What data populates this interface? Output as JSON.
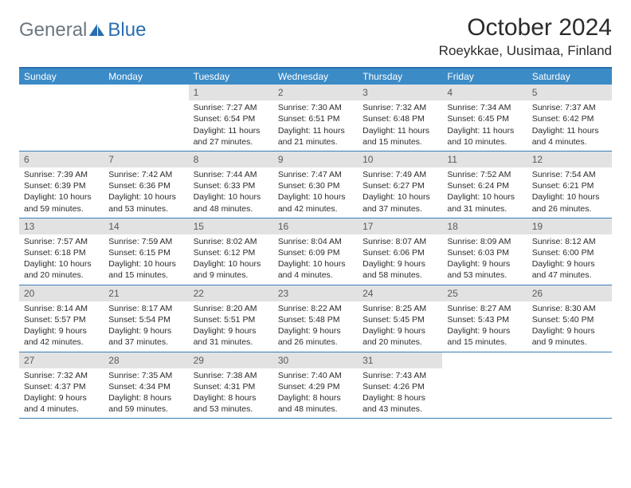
{
  "logo": {
    "general": "General",
    "blue": "Blue"
  },
  "header": {
    "title": "October 2024",
    "location": "Roeykkae, Uusimaa, Finland"
  },
  "colors": {
    "header_bg": "#3b8bc7",
    "border": "#2a6db0",
    "daynum_bg": "#e2e2e2",
    "text": "#2b2b2b",
    "logo_gray": "#6c7680",
    "logo_blue": "#2a6db0"
  },
  "dayNames": [
    "Sunday",
    "Monday",
    "Tuesday",
    "Wednesday",
    "Thursday",
    "Friday",
    "Saturday"
  ],
  "weeks": [
    [
      {
        "n": "",
        "lines": []
      },
      {
        "n": "",
        "lines": []
      },
      {
        "n": "1",
        "lines": [
          "Sunrise: 7:27 AM",
          "Sunset: 6:54 PM",
          "Daylight: 11 hours",
          "and 27 minutes."
        ]
      },
      {
        "n": "2",
        "lines": [
          "Sunrise: 7:30 AM",
          "Sunset: 6:51 PM",
          "Daylight: 11 hours",
          "and 21 minutes."
        ]
      },
      {
        "n": "3",
        "lines": [
          "Sunrise: 7:32 AM",
          "Sunset: 6:48 PM",
          "Daylight: 11 hours",
          "and 15 minutes."
        ]
      },
      {
        "n": "4",
        "lines": [
          "Sunrise: 7:34 AM",
          "Sunset: 6:45 PM",
          "Daylight: 11 hours",
          "and 10 minutes."
        ]
      },
      {
        "n": "5",
        "lines": [
          "Sunrise: 7:37 AM",
          "Sunset: 6:42 PM",
          "Daylight: 11 hours",
          "and 4 minutes."
        ]
      }
    ],
    [
      {
        "n": "6",
        "lines": [
          "Sunrise: 7:39 AM",
          "Sunset: 6:39 PM",
          "Daylight: 10 hours",
          "and 59 minutes."
        ]
      },
      {
        "n": "7",
        "lines": [
          "Sunrise: 7:42 AM",
          "Sunset: 6:36 PM",
          "Daylight: 10 hours",
          "and 53 minutes."
        ]
      },
      {
        "n": "8",
        "lines": [
          "Sunrise: 7:44 AM",
          "Sunset: 6:33 PM",
          "Daylight: 10 hours",
          "and 48 minutes."
        ]
      },
      {
        "n": "9",
        "lines": [
          "Sunrise: 7:47 AM",
          "Sunset: 6:30 PM",
          "Daylight: 10 hours",
          "and 42 minutes."
        ]
      },
      {
        "n": "10",
        "lines": [
          "Sunrise: 7:49 AM",
          "Sunset: 6:27 PM",
          "Daylight: 10 hours",
          "and 37 minutes."
        ]
      },
      {
        "n": "11",
        "lines": [
          "Sunrise: 7:52 AM",
          "Sunset: 6:24 PM",
          "Daylight: 10 hours",
          "and 31 minutes."
        ]
      },
      {
        "n": "12",
        "lines": [
          "Sunrise: 7:54 AM",
          "Sunset: 6:21 PM",
          "Daylight: 10 hours",
          "and 26 minutes."
        ]
      }
    ],
    [
      {
        "n": "13",
        "lines": [
          "Sunrise: 7:57 AM",
          "Sunset: 6:18 PM",
          "Daylight: 10 hours",
          "and 20 minutes."
        ]
      },
      {
        "n": "14",
        "lines": [
          "Sunrise: 7:59 AM",
          "Sunset: 6:15 PM",
          "Daylight: 10 hours",
          "and 15 minutes."
        ]
      },
      {
        "n": "15",
        "lines": [
          "Sunrise: 8:02 AM",
          "Sunset: 6:12 PM",
          "Daylight: 10 hours",
          "and 9 minutes."
        ]
      },
      {
        "n": "16",
        "lines": [
          "Sunrise: 8:04 AM",
          "Sunset: 6:09 PM",
          "Daylight: 10 hours",
          "and 4 minutes."
        ]
      },
      {
        "n": "17",
        "lines": [
          "Sunrise: 8:07 AM",
          "Sunset: 6:06 PM",
          "Daylight: 9 hours",
          "and 58 minutes."
        ]
      },
      {
        "n": "18",
        "lines": [
          "Sunrise: 8:09 AM",
          "Sunset: 6:03 PM",
          "Daylight: 9 hours",
          "and 53 minutes."
        ]
      },
      {
        "n": "19",
        "lines": [
          "Sunrise: 8:12 AM",
          "Sunset: 6:00 PM",
          "Daylight: 9 hours",
          "and 47 minutes."
        ]
      }
    ],
    [
      {
        "n": "20",
        "lines": [
          "Sunrise: 8:14 AM",
          "Sunset: 5:57 PM",
          "Daylight: 9 hours",
          "and 42 minutes."
        ]
      },
      {
        "n": "21",
        "lines": [
          "Sunrise: 8:17 AM",
          "Sunset: 5:54 PM",
          "Daylight: 9 hours",
          "and 37 minutes."
        ]
      },
      {
        "n": "22",
        "lines": [
          "Sunrise: 8:20 AM",
          "Sunset: 5:51 PM",
          "Daylight: 9 hours",
          "and 31 minutes."
        ]
      },
      {
        "n": "23",
        "lines": [
          "Sunrise: 8:22 AM",
          "Sunset: 5:48 PM",
          "Daylight: 9 hours",
          "and 26 minutes."
        ]
      },
      {
        "n": "24",
        "lines": [
          "Sunrise: 8:25 AM",
          "Sunset: 5:45 PM",
          "Daylight: 9 hours",
          "and 20 minutes."
        ]
      },
      {
        "n": "25",
        "lines": [
          "Sunrise: 8:27 AM",
          "Sunset: 5:43 PM",
          "Daylight: 9 hours",
          "and 15 minutes."
        ]
      },
      {
        "n": "26",
        "lines": [
          "Sunrise: 8:30 AM",
          "Sunset: 5:40 PM",
          "Daylight: 9 hours",
          "and 9 minutes."
        ]
      }
    ],
    [
      {
        "n": "27",
        "lines": [
          "Sunrise: 7:32 AM",
          "Sunset: 4:37 PM",
          "Daylight: 9 hours",
          "and 4 minutes."
        ]
      },
      {
        "n": "28",
        "lines": [
          "Sunrise: 7:35 AM",
          "Sunset: 4:34 PM",
          "Daylight: 8 hours",
          "and 59 minutes."
        ]
      },
      {
        "n": "29",
        "lines": [
          "Sunrise: 7:38 AM",
          "Sunset: 4:31 PM",
          "Daylight: 8 hours",
          "and 53 minutes."
        ]
      },
      {
        "n": "30",
        "lines": [
          "Sunrise: 7:40 AM",
          "Sunset: 4:29 PM",
          "Daylight: 8 hours",
          "and 48 minutes."
        ]
      },
      {
        "n": "31",
        "lines": [
          "Sunrise: 7:43 AM",
          "Sunset: 4:26 PM",
          "Daylight: 8 hours",
          "and 43 minutes."
        ]
      },
      {
        "n": "",
        "lines": []
      },
      {
        "n": "",
        "lines": []
      }
    ]
  ]
}
